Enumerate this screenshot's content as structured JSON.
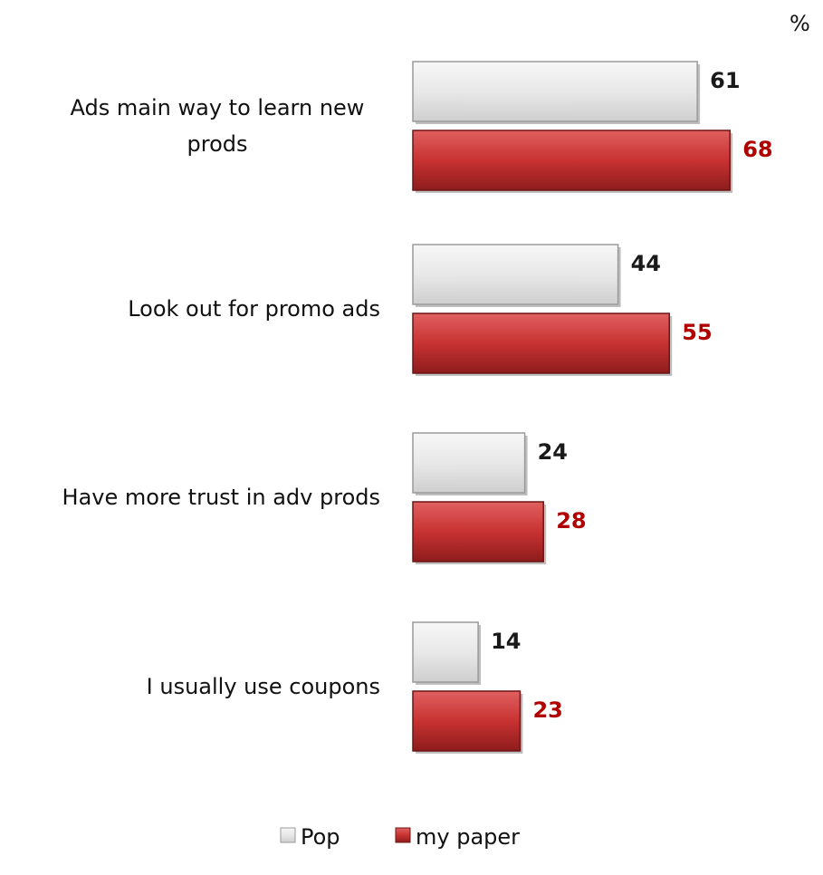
{
  "chart_data": {
    "type": "bar",
    "orientation": "horizontal",
    "unit_label": "%",
    "categories": [
      [
        "Ads main way to learn new",
        "prods"
      ],
      [
        "Look out for promo ads"
      ],
      [
        "Have more trust in adv prods"
      ],
      [
        "I usually use coupons"
      ]
    ],
    "series": [
      {
        "name": "Pop",
        "values": [
          61,
          44,
          24,
          14
        ],
        "color": "#e6e6e6",
        "label_color": "#1a1a1a"
      },
      {
        "name": "my paper",
        "values": [
          68,
          55,
          28,
          23
        ],
        "color": "#c83232",
        "label_color": "#b00000"
      }
    ],
    "xlim": [
      0,
      100
    ],
    "grid": false,
    "legend_position": "bottom"
  }
}
